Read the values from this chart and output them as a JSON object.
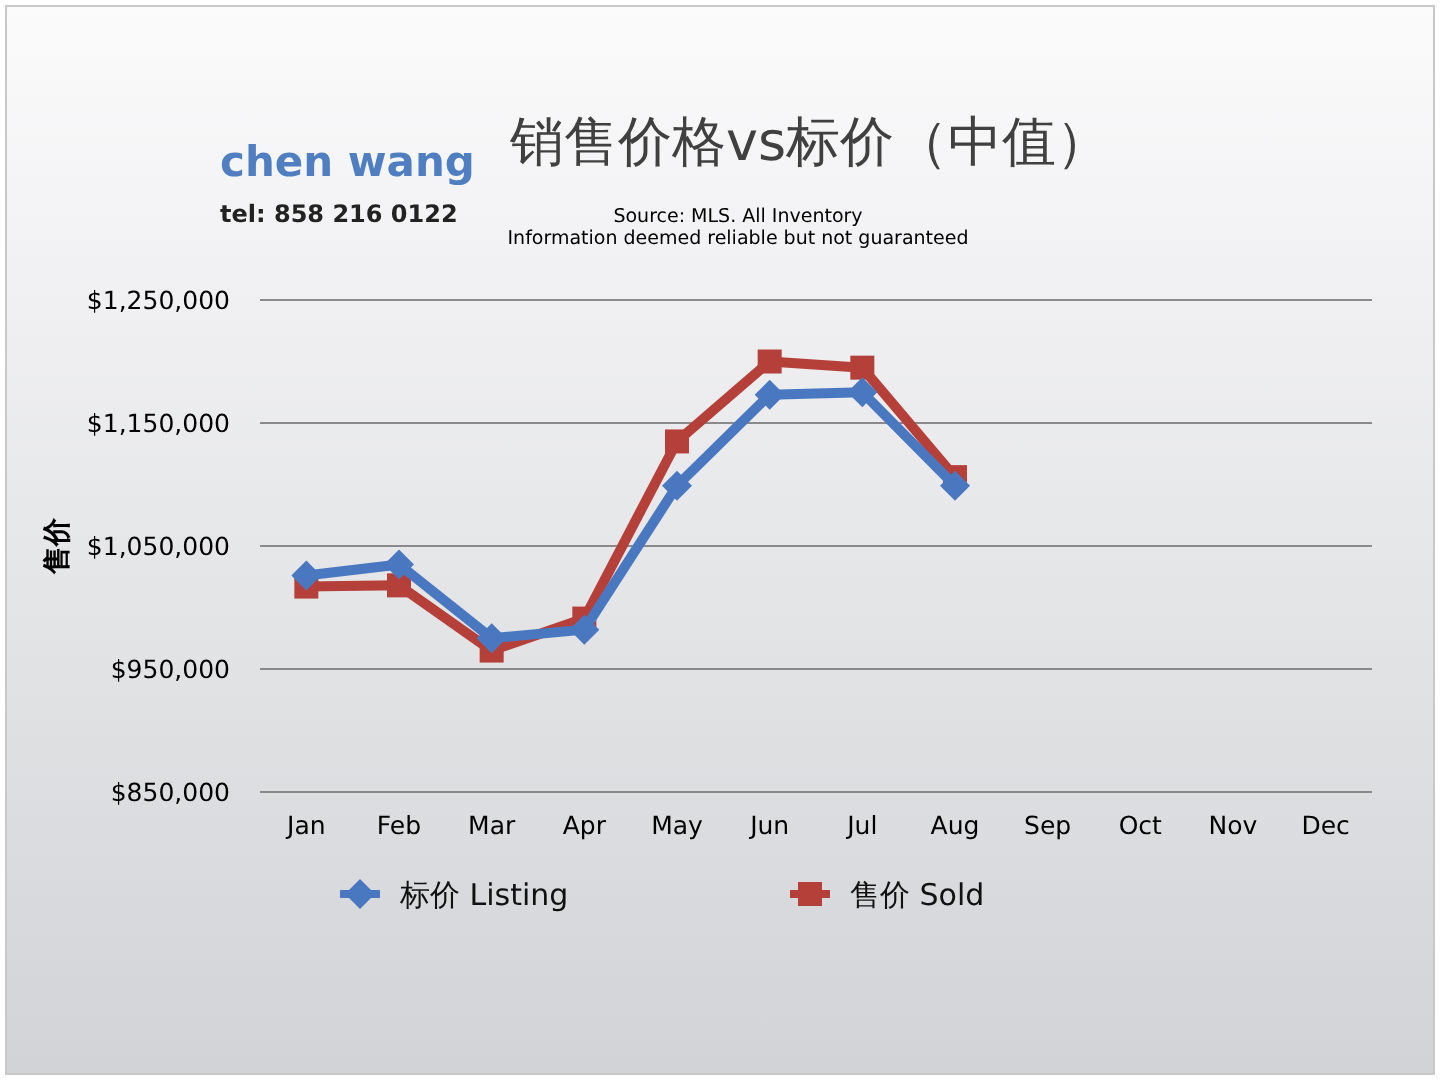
{
  "chart_data": {
    "type": "line",
    "title": "销售价格vs标价（中值）",
    "ylabel": "售价",
    "annotations": [
      "chen wang",
      "tel: 858 216 0122",
      "Source: MLS. All Inventory",
      "Information deemed reliable but not guaranteed"
    ],
    "categories": [
      "Jan",
      "Feb",
      "Mar",
      "Apr",
      "May",
      "Jun",
      "Jul",
      "Aug",
      "Sep",
      "Oct",
      "Nov",
      "Dec"
    ],
    "series": [
      {
        "name": "标价 Listing",
        "color": "#4a78c0",
        "marker": "diamond",
        "values": [
          1026000,
          1035000,
          975000,
          982000,
          1099000,
          1173000,
          1175000,
          1099000,
          null,
          null,
          null,
          null
        ]
      },
      {
        "name": "售价 Sold",
        "color": "#b5403a",
        "marker": "square",
        "values": [
          1017000,
          1018000,
          965000,
          991000,
          1135000,
          1200000,
          1195000,
          1106000,
          null,
          null,
          null,
          null
        ]
      }
    ],
    "ylim": [
      850000,
      1250000
    ],
    "yticks": [
      {
        "value": 850000,
        "label": "$850,000"
      },
      {
        "value": 950000,
        "label": "$950,000"
      },
      {
        "value": 1050000,
        "label": "$1,050,000"
      },
      {
        "value": 1150000,
        "label": "$1,150,000"
      },
      {
        "value": 1250000,
        "label": "$1,250,000"
      }
    ],
    "grid": "y",
    "legend": "bottom",
    "line_style": "solid"
  }
}
